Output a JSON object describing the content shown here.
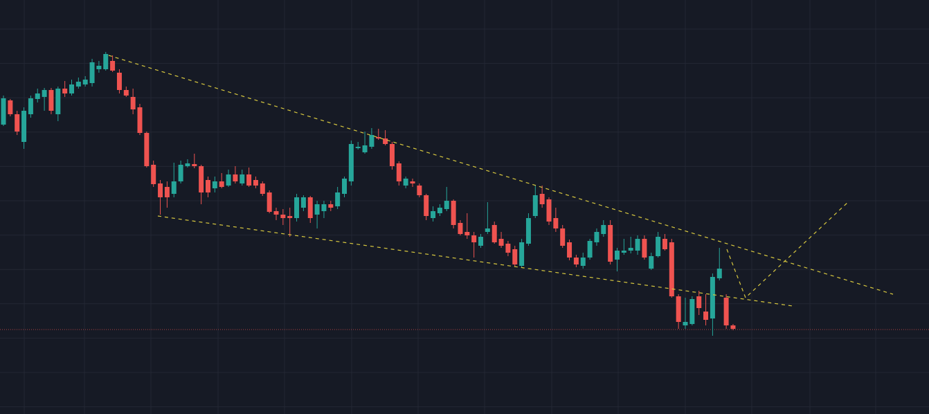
{
  "chart_data": {
    "type": "candlestick",
    "up_color": "#26a69a",
    "down_color": "#ef5350",
    "ylim": [
      0,
      598
    ],
    "open": [
      418,
      453,
      433,
      393,
      433,
      455,
      458,
      468,
      433,
      470,
      463,
      473,
      476,
      478,
      498,
      498,
      510,
      493,
      468,
      458,
      443,
      406,
      360,
      333,
      328,
      318,
      336,
      358,
      361,
      358,
      338,
      326,
      336,
      330,
      346,
      333,
      346,
      338,
      333,
      320,
      293,
      288,
      286,
      283,
      298,
      313,
      288,
      293,
      303,
      300,
      318,
      336,
      384,
      378,
      386,
      400,
      398,
      390,
      362,
      330,
      336,
      330,
      316,
      283,
      290,
      296,
      308,
      276,
      263,
      258,
      243,
      263,
      273,
      253,
      246,
      238,
      214,
      246,
      286,
      318,
      310,
      283,
      268,
      248,
      226,
      214,
      226,
      248,
      260,
      273,
      223,
      233,
      236,
      236,
      253,
      210,
      228,
      253,
      248,
      170,
      128,
      130,
      170,
      148,
      138,
      196,
      168,
      128
    ],
    "high": [
      460,
      455,
      438,
      443,
      460,
      470,
      471,
      471,
      473,
      481,
      483,
      486,
      488,
      513,
      510,
      523,
      518,
      498,
      473,
      470,
      448,
      408,
      366,
      338,
      336,
      363,
      366,
      368,
      376,
      360,
      343,
      343,
      348,
      353,
      358,
      353,
      356,
      343,
      336,
      323,
      298,
      296,
      298,
      318,
      316,
      315,
      308,
      308,
      308,
      328,
      343,
      395,
      393,
      408,
      413,
      412,
      410,
      393,
      365,
      343,
      340,
      333,
      318,
      300,
      303,
      328,
      310,
      280,
      290,
      263,
      260,
      306,
      278,
      263,
      250,
      243,
      253,
      290,
      330,
      330,
      313,
      298,
      273,
      252,
      230,
      233,
      253,
      268,
      280,
      280,
      240,
      253,
      256,
      258,
      258,
      233,
      263,
      260,
      253,
      173,
      168,
      170,
      178,
      173,
      203,
      240,
      173,
      130
    ],
    "low": [
      416,
      430,
      403,
      383,
      428,
      450,
      438,
      433,
      423,
      458,
      460,
      470,
      473,
      473,
      493,
      496,
      494,
      463,
      458,
      433,
      403,
      356,
      328,
      288,
      298,
      313,
      333,
      356,
      355,
      303,
      313,
      320,
      326,
      328,
      333,
      330,
      328,
      326,
      315,
      290,
      280,
      273,
      256,
      278,
      293,
      276,
      268,
      283,
      293,
      296,
      313,
      330,
      382,
      376,
      383,
      396,
      388,
      353,
      330,
      326,
      328,
      313,
      280,
      278,
      286,
      293,
      268,
      258,
      253,
      226,
      240,
      260,
      246,
      240,
      228,
      213,
      212,
      243,
      283,
      298,
      273,
      263,
      240,
      222,
      212,
      210,
      223,
      243,
      256,
      216,
      206,
      230,
      232,
      230,
      223,
      208,
      226,
      236,
      168,
      123,
      123,
      128,
      143,
      128,
      113,
      193,
      123,
      121
    ],
    "close": [
      456,
      433,
      408,
      438,
      456,
      463,
      468,
      438,
      470,
      463,
      476,
      480,
      483,
      508,
      503,
      520,
      496,
      468,
      460,
      440,
      406,
      358,
      332,
      313,
      313,
      336,
      360,
      362,
      358,
      320,
      320,
      336,
      328,
      346,
      336,
      346,
      330,
      330,
      318,
      292,
      288,
      283,
      283,
      313,
      313,
      283,
      303,
      303,
      298,
      320,
      340,
      390,
      386,
      388,
      403,
      398,
      390,
      358,
      336,
      340,
      333,
      316,
      286,
      293,
      298,
      308,
      273,
      260,
      258,
      248,
      256,
      268,
      248,
      243,
      233,
      216,
      248,
      283,
      316,
      303,
      278,
      268,
      243,
      226,
      216,
      226,
      250,
      263,
      273,
      220,
      236,
      236,
      240,
      253,
      226,
      228,
      256,
      238,
      170,
      133,
      133,
      166,
      153,
      136,
      198,
      210,
      128,
      123
    ]
  }
}
